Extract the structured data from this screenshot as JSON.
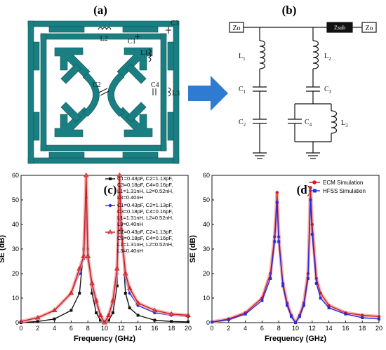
{
  "panels": {
    "a": "(a)",
    "b": "(b)",
    "c": "(c)",
    "d": "(d)"
  },
  "layout_labels": {
    "C1": "C1",
    "C2": "C2",
    "C3": "C3",
    "C4": "C4",
    "L1": "L1",
    "L2": "L2",
    "L3": "L3"
  },
  "circuit": {
    "z_left": "Zo",
    "z_sub": "Zsub",
    "z_right": "Zo",
    "L1": "L",
    "L1_sub": "1",
    "L2": "L",
    "L2_sub": "2",
    "L3": "L",
    "L3_sub": "3",
    "C1": "C",
    "C1_sub": "1",
    "C2": "C",
    "C2_sub": "2",
    "C3": "C",
    "C3_sub": "3",
    "C4": "C",
    "C4_sub": "4"
  },
  "colors": {
    "teal": "#1a7f82",
    "arrow": "#2e7bd1",
    "black": "#111111",
    "blue": "#2a2ae0",
    "red": "#d01b1b",
    "redband": "#f0a8a8"
  },
  "chart_data": [
    {
      "type": "line",
      "panel": "(c)",
      "xlabel": "Frequency (GHz)",
      "ylabel": "SE (dB)",
      "xlim": [
        0,
        20
      ],
      "ylim": [
        0,
        60
      ],
      "xticks": [
        0,
        2,
        4,
        6,
        8,
        10,
        12,
        14,
        16,
        18,
        20
      ],
      "yticks": [
        0,
        10,
        20,
        30,
        40,
        50,
        60
      ],
      "legend_position": "top-right",
      "series": [
        {
          "legend_lines": [
            "C1=0.43pF, C2=1.13pF,",
            "C3=0.18pF, C4=0.16pF,",
            "L1=1.31nH, L2=0.52nH,",
            "L3=0.40nH"
          ],
          "color": "#111111",
          "marker": "square",
          "x": [
            0,
            2,
            4,
            6,
            7,
            7.5,
            7.8,
            8,
            8.5,
            9,
            9.5,
            10,
            10.5,
            11,
            11.5,
            11.8,
            12,
            12.5,
            13,
            14,
            16,
            18,
            20
          ],
          "y": [
            0,
            0.5,
            1.5,
            5,
            12,
            30,
            51,
            30,
            12,
            4,
            1,
            0,
            1,
            4,
            15,
            55,
            40,
            12,
            6,
            3,
            1,
            0.5,
            0.3
          ]
        },
        {
          "legend_lines": [
            "C1=0.43pF, C2=1.13pF,",
            "C3=0.18pF, C4=0.16pF,",
            "L1=1.31nH, L2=0.52nH,",
            "L3=0.40nH"
          ],
          "color": "#2a2ae0",
          "marker": "circle",
          "x": [
            0,
            2,
            4,
            6,
            7,
            7.5,
            7.8,
            8,
            8.5,
            9,
            9.5,
            10,
            10.5,
            11,
            11.5,
            11.8,
            12,
            12.5,
            13,
            14,
            16,
            18,
            20
          ],
          "y": [
            0.5,
            2,
            5,
            12,
            20,
            26,
            43,
            26,
            15,
            8,
            3,
            0,
            3,
            8,
            20,
            43,
            35,
            18,
            12,
            7,
            4,
            3,
            2.5
          ]
        },
        {
          "legend_lines": [
            "C1=0.43pF, C2=1.13pF,",
            "C3=0.18pF, C4=0.16pF,",
            "L1=1.31nH, L2=0.52nH,",
            "L3=0.40nH"
          ],
          "color": "#d01b1b",
          "marker": "triangle",
          "x": [
            0,
            2,
            4,
            6,
            7,
            7.5,
            7.8,
            8,
            8.5,
            9,
            9.5,
            10,
            10.5,
            11,
            11.5,
            11.8,
            12,
            12.5,
            13,
            14,
            16,
            18,
            20
          ],
          "y": [
            0.5,
            2,
            5,
            12,
            22,
            27,
            60,
            27,
            16,
            9,
            3,
            0,
            3,
            9,
            22,
            60,
            38,
            20,
            14,
            8,
            5,
            3.5,
            3
          ]
        }
      ]
    },
    {
      "type": "line",
      "panel": "(d)",
      "xlabel": "Frequency (GHz)",
      "ylabel": "SE (dB)",
      "xlim": [
        0,
        20
      ],
      "ylim": [
        0,
        60
      ],
      "xticks": [
        0,
        2,
        4,
        6,
        8,
        10,
        12,
        14,
        16,
        18,
        20
      ],
      "yticks": [
        0,
        10,
        20,
        30,
        40,
        50,
        60
      ],
      "legend_position": "top-right",
      "series": [
        {
          "name": "ECM Simulation",
          "color": "#d01b1b",
          "marker": "circle",
          "x": [
            0,
            2,
            4,
            6,
            7,
            7.5,
            7.8,
            8,
            8.5,
            9,
            9.5,
            10,
            10.5,
            11,
            11.5,
            11.8,
            12,
            12.5,
            13,
            14,
            16,
            18,
            20
          ],
          "y": [
            0.3,
            1.5,
            4,
            10,
            20,
            35,
            53,
            35,
            16,
            8,
            3,
            0,
            3,
            8,
            20,
            55,
            40,
            18,
            12,
            7,
            4,
            3,
            2.5
          ]
        },
        {
          "name": "HFSS Simulation",
          "color": "#2a2ae0",
          "marker": "square",
          "x": [
            0,
            2,
            4,
            6,
            7,
            7.5,
            7.8,
            8,
            8.5,
            9,
            9.5,
            10,
            10.5,
            11,
            11.5,
            11.8,
            12,
            12.5,
            13,
            14,
            16,
            18,
            20
          ],
          "y": [
            0.2,
            1.2,
            3.5,
            9,
            18,
            33,
            49,
            33,
            15,
            7,
            2.5,
            0,
            2.5,
            7,
            18,
            50,
            36,
            16,
            10,
            6,
            3.5,
            2,
            1.5
          ]
        }
      ]
    }
  ]
}
